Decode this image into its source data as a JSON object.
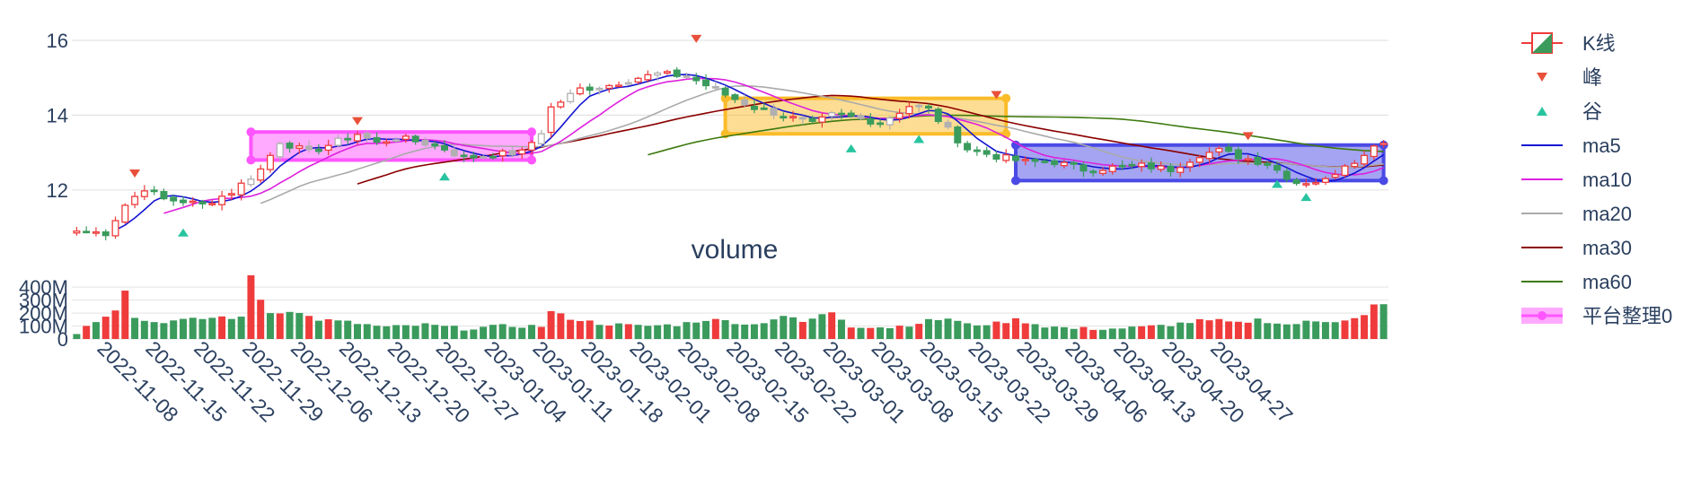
{
  "chart_data": {
    "type": "candlestick",
    "price_axis": {
      "ticks": [
        12,
        14,
        16
      ],
      "ylim": [
        10.7,
        16.6
      ],
      "grid": true
    },
    "volume_axis": {
      "title": "volume",
      "ticks": [
        0,
        100,
        200,
        300,
        400
      ],
      "tick_labels": [
        "0",
        "100M",
        "200M",
        "300M",
        "400M"
      ],
      "ylim": [
        0,
        470
      ],
      "grid": true
    },
    "x_axis": {
      "ticks": [
        "2022-11-08",
        "2022-11-15",
        "2022-11-22",
        "2022-11-29",
        "2022-12-06",
        "2022-12-13",
        "2022-12-20",
        "2022-12-27",
        "2023-01-04",
        "2023-01-11",
        "2023-01-18",
        "2023-02-01",
        "2023-02-08",
        "2023-02-15",
        "2023-02-22",
        "2023-03-01",
        "2023-03-08",
        "2023-03-15",
        "2023-03-22",
        "2023-03-29",
        "2023-04-06",
        "2023-04-13",
        "2023-04-20",
        "2023-04-27"
      ],
      "tick_index": [
        2,
        7,
        12,
        17,
        22,
        27,
        32,
        37,
        42,
        47,
        52,
        57,
        62,
        67,
        72,
        77,
        82,
        87,
        92,
        97,
        102,
        107,
        112,
        117
      ]
    },
    "legend": {
      "placement": "right",
      "items": [
        {
          "key": "k",
          "label": "K线"
        },
        {
          "key": "peak",
          "label": "峰"
        },
        {
          "key": "valley",
          "label": "谷"
        },
        {
          "key": "ma5",
          "label": "ma5"
        },
        {
          "key": "ma10",
          "label": "ma10"
        },
        {
          "key": "ma20",
          "label": "ma20"
        },
        {
          "key": "ma30",
          "label": "ma30"
        },
        {
          "key": "ma60",
          "label": "ma60"
        },
        {
          "key": "platform",
          "label": "平台整理0"
        }
      ]
    },
    "colors": {
      "up": "#ef3b3b",
      "down": "#3a9b5c",
      "gray": "#b0b0b0",
      "peak": "#e8503a",
      "valley": "#28c4a0",
      "ma5": "#1414d2",
      "ma10": "#dd22dd",
      "ma20": "#aaaaaa",
      "ma30": "#8b0000",
      "ma60": "#3e7a0e",
      "box_pink": "#ff55ff",
      "box_orange": "#fbbc2a",
      "box_blue": "#4a4ae6"
    },
    "key_closes": [
      [
        0,
        10.9
      ],
      [
        3,
        10.85
      ],
      [
        5,
        11.6
      ],
      [
        7,
        12.05
      ],
      [
        9,
        11.75
      ],
      [
        11,
        11.7
      ],
      [
        13,
        11.6
      ],
      [
        16,
        11.95
      ],
      [
        19,
        12.55
      ],
      [
        21,
        13.3
      ],
      [
        24,
        13.0
      ],
      [
        27,
        13.3
      ],
      [
        29,
        13.5
      ],
      [
        31,
        13.25
      ],
      [
        33,
        13.4
      ],
      [
        36,
        13.25
      ],
      [
        38,
        13.1
      ],
      [
        40,
        12.85
      ],
      [
        43,
        12.95
      ],
      [
        46,
        13.0
      ],
      [
        48,
        13.55
      ],
      [
        49,
        14.2
      ],
      [
        52,
        14.7
      ],
      [
        55,
        14.8
      ],
      [
        57,
        14.95
      ],
      [
        60,
        15.1
      ],
      [
        63,
        15.05
      ],
      [
        65,
        14.8
      ],
      [
        67,
        14.55
      ],
      [
        70,
        14.2
      ],
      [
        73,
        14.0
      ],
      [
        76,
        13.75
      ],
      [
        78,
        14.0
      ],
      [
        80,
        13.95
      ],
      [
        83,
        13.8
      ],
      [
        86,
        14.25
      ],
      [
        88,
        14.15
      ],
      [
        90,
        13.6
      ],
      [
        92,
        13.1
      ],
      [
        95,
        12.9
      ],
      [
        98,
        12.75
      ],
      [
        101,
        12.75
      ],
      [
        104,
        12.55
      ],
      [
        107,
        12.6
      ],
      [
        110,
        12.65
      ],
      [
        113,
        12.55
      ],
      [
        116,
        12.95
      ],
      [
        118,
        13.05
      ],
      [
        120,
        12.9
      ],
      [
        123,
        12.7
      ],
      [
        126,
        12.2
      ],
      [
        129,
        12.25
      ],
      [
        131,
        12.7
      ],
      [
        133,
        12.9
      ],
      [
        134,
        13.25
      ]
    ],
    "gray_range": [
      17,
      92
    ],
    "volume_key": [
      [
        0,
        50
      ],
      [
        4,
        230
      ],
      [
        5,
        385
      ],
      [
        6,
        160
      ],
      [
        8,
        130
      ],
      [
        12,
        150
      ],
      [
        15,
        170
      ],
      [
        17,
        160
      ],
      [
        18,
        490
      ],
      [
        19,
        310
      ],
      [
        20,
        200
      ],
      [
        22,
        220
      ],
      [
        25,
        150
      ],
      [
        28,
        130
      ],
      [
        32,
        90
      ],
      [
        36,
        110
      ],
      [
        40,
        80
      ],
      [
        44,
        100
      ],
      [
        48,
        100
      ],
      [
        49,
        210
      ],
      [
        51,
        160
      ],
      [
        54,
        120
      ],
      [
        58,
        100
      ],
      [
        62,
        110
      ],
      [
        65,
        150
      ],
      [
        67,
        140
      ],
      [
        70,
        110
      ],
      [
        73,
        180
      ],
      [
        75,
        130
      ],
      [
        78,
        210
      ],
      [
        80,
        100
      ],
      [
        84,
        90
      ],
      [
        86,
        110
      ],
      [
        88,
        140
      ],
      [
        90,
        160
      ],
      [
        92,
        110
      ],
      [
        95,
        120
      ],
      [
        97,
        150
      ],
      [
        100,
        100
      ],
      [
        103,
        80
      ],
      [
        107,
        80
      ],
      [
        110,
        90
      ],
      [
        113,
        110
      ],
      [
        116,
        140
      ],
      [
        118,
        140
      ],
      [
        120,
        120
      ],
      [
        122,
        150
      ],
      [
        125,
        110
      ],
      [
        127,
        130
      ],
      [
        130,
        140
      ],
      [
        133,
        180
      ],
      [
        134,
        260
      ]
    ],
    "volume_red_indices": [
      1,
      3,
      4,
      5,
      15,
      18,
      19,
      21,
      24,
      26,
      48,
      49,
      50,
      51,
      52,
      53,
      55,
      57,
      66,
      75,
      78,
      80,
      82,
      85,
      87,
      95,
      96,
      97,
      98,
      104,
      105,
      110,
      111,
      116,
      117,
      118,
      119,
      120,
      121,
      131,
      132,
      133,
      134
    ],
    "peaks": [
      [
        6,
        12.45
      ],
      [
        29,
        13.85
      ],
      [
        64,
        16.05
      ],
      [
        95,
        14.55
      ],
      [
        121,
        13.45
      ]
    ],
    "valleys": [
      [
        11,
        10.85
      ],
      [
        38,
        12.35
      ],
      [
        80,
        13.1
      ],
      [
        87,
        13.35
      ],
      [
        124,
        12.15
      ],
      [
        127,
        11.8
      ]
    ],
    "platforms": [
      {
        "x0": 18,
        "x1": 47,
        "y0": 12.8,
        "y1": 13.55,
        "color": "box_pink"
      },
      {
        "x0": 67,
        "x1": 96,
        "y0": 13.5,
        "y1": 14.45,
        "color": "box_orange"
      },
      {
        "x0": 97,
        "x1": 135,
        "y0": 12.25,
        "y1": 13.2,
        "color": "box_blue"
      }
    ]
  }
}
